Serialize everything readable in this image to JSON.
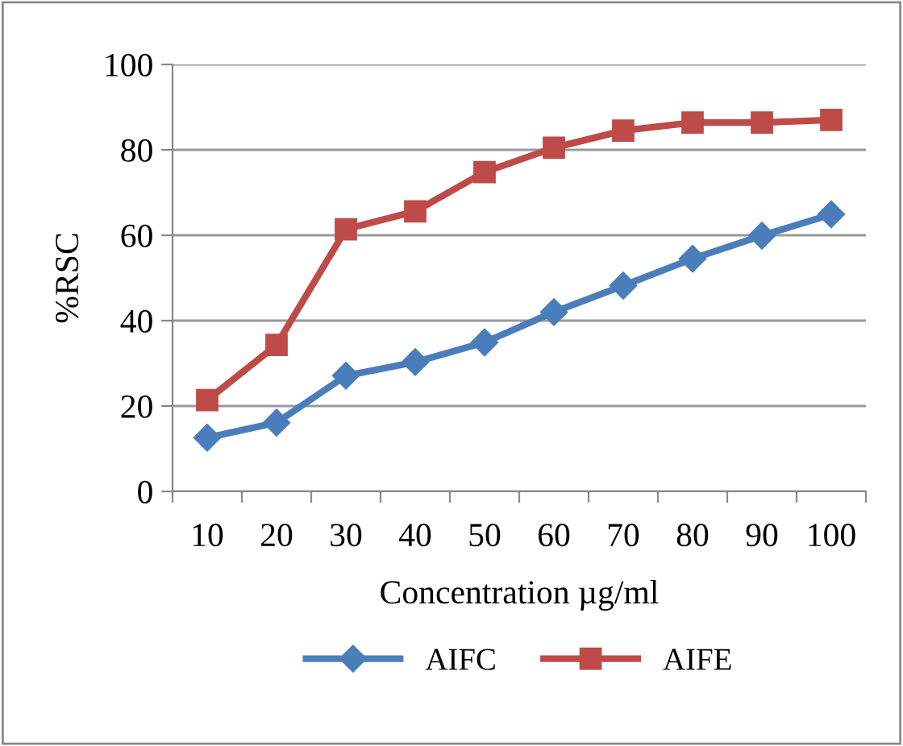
{
  "chart_data": {
    "type": "line",
    "xlabel": "Concentration µg/ml",
    "ylabel": "%RSC",
    "categories": [
      "10",
      "20",
      "30",
      "40",
      "50",
      "60",
      "70",
      "80",
      "90",
      "100"
    ],
    "series": [
      {
        "name": "AIFC",
        "color": "#4a7ebb",
        "marker": "diamond",
        "values": [
          12.6,
          16.1,
          27.1,
          30.3,
          34.9,
          42,
          48.2,
          54.5,
          59.9,
          64.9
        ]
      },
      {
        "name": "AIFE",
        "color": "#be4b48",
        "marker": "square",
        "values": [
          21.4,
          34.3,
          61.4,
          65.6,
          74.8,
          80.5,
          84.5,
          86.4,
          86.4,
          87
        ]
      }
    ],
    "ylim": [
      0,
      100
    ],
    "yticks": [
      0,
      20,
      40,
      60,
      80,
      100
    ],
    "grid": "y",
    "legend": "bottom",
    "line_style": "solid"
  }
}
